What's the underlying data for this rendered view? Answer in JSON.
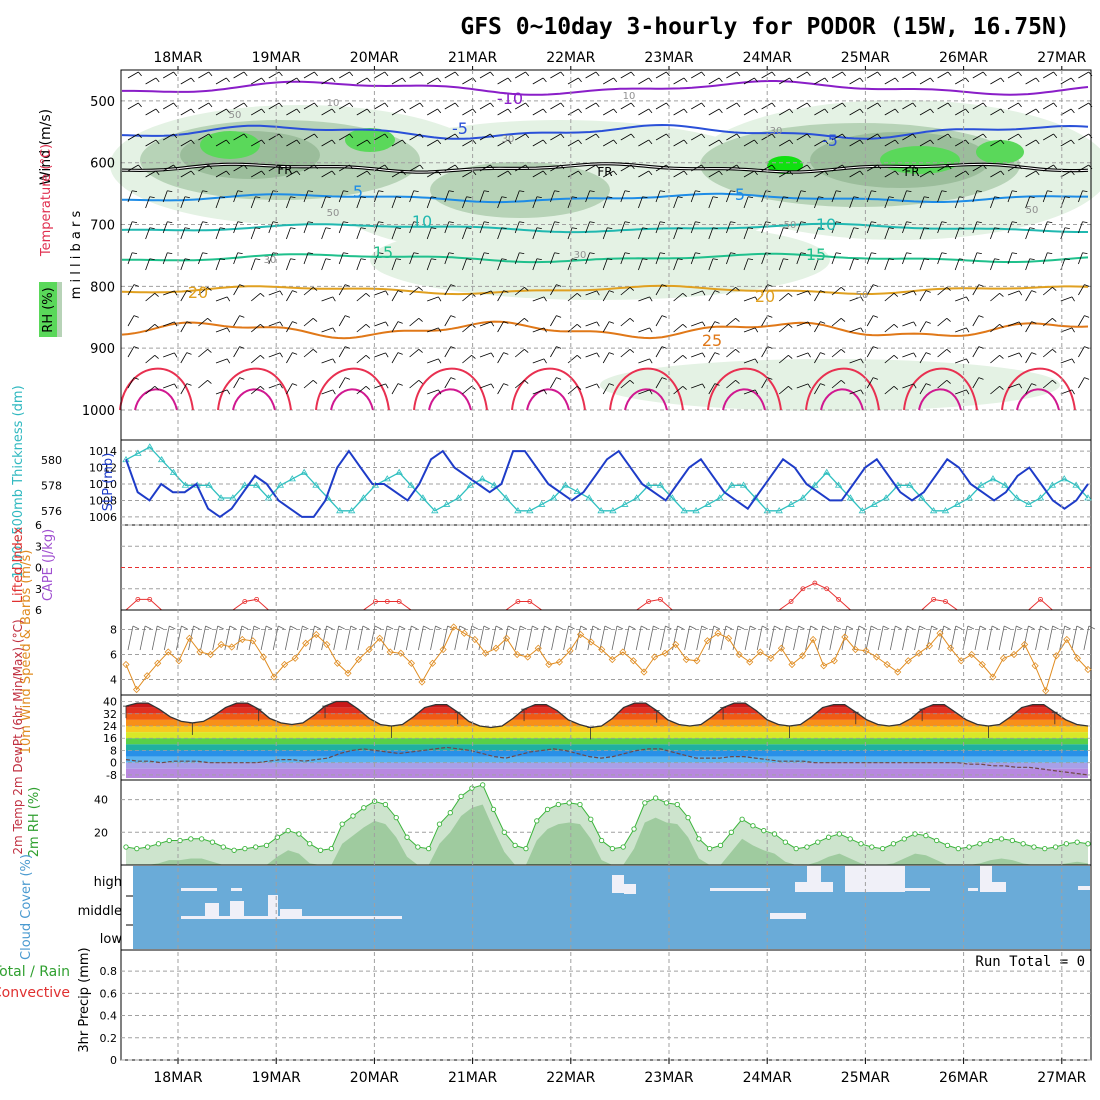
{
  "title": "GFS 0~10day 3-hourly for PODOR (15W, 16.75N)",
  "dates": [
    "18MAR",
    "19MAR",
    "20MAR",
    "21MAR",
    "22MAR",
    "23MAR",
    "24MAR",
    "25MAR",
    "26MAR",
    "27MAR"
  ],
  "colors": {
    "rh_light": "#e4f2e4",
    "rh_mid": "#b7d3b7",
    "rh_dark": "#9bbd9b",
    "rh_bright": "#5ad85a",
    "rh_vivid": "#10e010",
    "temp_m10": "#8a1ec8",
    "temp_m5": "#2a50d8",
    "freeze": "#000000",
    "temp_5": "#1e8ce6",
    "temp_10": "#20b8b0",
    "temp_15": "#20c08c",
    "temp_20": "#e0a020",
    "temp_25": "#e07818",
    "temp_30": "#e83050",
    "temp_35": "#d01890",
    "slp": "#1e3cc8",
    "thickness": "#30c0c0",
    "lifted": "#e83030",
    "wind10": "#e08c20",
    "rh2m": "#3cb43c",
    "rh2m_fill": "#a8d0a8",
    "cloud": "#6aabd8",
    "cloud_white": "#f0f0f8",
    "grid": "#a0a0a0"
  },
  "upper": {
    "ylabel_wind": "Wind (m/s)",
    "ylabel_temp": "Temperature (°C)",
    "ylabel_rh": "RH (%)",
    "ylabel_mb": "m i l l i b a r s",
    "yticks": [
      "500",
      "600",
      "700",
      "800",
      "900",
      "1000"
    ],
    "contour_labels": [
      {
        "text": "-10",
        "group": "m10"
      },
      {
        "text": "-5",
        "group": "m5"
      },
      {
        "text": "-5",
        "group": "m5"
      },
      {
        "text": "FR",
        "group": "fr"
      },
      {
        "text": "FR",
        "group": "fr"
      },
      {
        "text": "FR",
        "group": "fr"
      },
      {
        "text": "5",
        "group": "p5"
      },
      {
        "text": "5",
        "group": "p5"
      },
      {
        "text": "10",
        "group": "p10"
      },
      {
        "text": "10",
        "group": "p10"
      },
      {
        "text": "15",
        "group": "p15"
      },
      {
        "text": "15",
        "group": "p15"
      },
      {
        "text": "20",
        "group": "p20"
      },
      {
        "text": "20",
        "group": "p20"
      },
      {
        "text": "25",
        "group": "p25"
      }
    ],
    "rh_labels": [
      "10",
      "10",
      "50",
      "30",
      "30",
      "50",
      "50",
      "30",
      "30",
      "50",
      "50"
    ]
  },
  "slp_panel": {
    "ylabel_thickness": "1000~500mb Thickness (dm)",
    "ylabel_slp": "SLP (mb)",
    "left_ticks": [
      "580",
      "578",
      "576"
    ],
    "right_ticks": [
      "1014",
      "1012",
      "1010",
      "1008",
      "1006"
    ]
  },
  "li_panel": {
    "ylabel_li": "Lifted Index",
    "ylabel_cape": "CAPE (J/kg)",
    "yticks": [
      "-6",
      "-3",
      "0",
      "3",
      "6"
    ]
  },
  "wind_panel": {
    "ylabel": "10m Wind Speed & Barbs (m/s)",
    "yticks": [
      "8",
      "6",
      "4"
    ]
  },
  "temp_panel": {
    "ylabel": "2m Temp 2m DewPt (6hr Min/Max) (°C)",
    "yticks": [
      "40",
      "32",
      "24",
      "16",
      "8",
      "0",
      "-8"
    ]
  },
  "rh_panel": {
    "ylabel": "2m RH (%)",
    "yticks": [
      "40",
      "20"
    ]
  },
  "cloud_panel": {
    "ylabel": "Cloud Cover (%)",
    "levels": [
      "high",
      "middle",
      "low"
    ]
  },
  "precip_panel": {
    "ylabel_total": "Total / Rain",
    "ylabel_conv": "Convective",
    "ylabel_axis": "3hr Precip (mm)",
    "yticks": [
      "0.8",
      "0.6",
      "0.4",
      "0.2",
      "0"
    ],
    "run_total": "Run Total = 0"
  },
  "chart_data": [
    {
      "type": "line",
      "name": "slp",
      "x_unit": "3-hourly steps from 17 Mar 15Z",
      "ylabel": "SLP (mb)",
      "ylim": [
        1005,
        1015
      ],
      "values": [
        1013,
        1009,
        1008,
        1010,
        1009,
        1009,
        1010,
        1007,
        1006,
        1007,
        1009,
        1011,
        1010,
        1008,
        1007,
        1006,
        1006,
        1008,
        1012,
        1014,
        1012,
        1010,
        1010,
        1009,
        1008,
        1010,
        1013,
        1014,
        1012,
        1011,
        1010,
        1009,
        1010,
        1014,
        1014,
        1012,
        1010,
        1009,
        1008,
        1009,
        1011,
        1013,
        1014,
        1012,
        1010,
        1009,
        1008,
        1010,
        1012,
        1013,
        1011,
        1009,
        1008,
        1007,
        1009,
        1011,
        1013,
        1012,
        1010,
        1009,
        1008,
        1008,
        1010,
        1012,
        1013,
        1011,
        1009,
        1008,
        1009,
        1011,
        1013,
        1012,
        1010,
        1009,
        1008,
        1009,
        1011,
        1012,
        1010,
        1008,
        1007,
        1008,
        1010
      ]
    },
    {
      "type": "line",
      "name": "thickness",
      "ylabel": "1000~500mb Thickness (dm)",
      "ylim": [
        575,
        581
      ],
      "values": [
        580,
        580.5,
        581,
        580,
        579,
        578,
        578,
        578,
        577,
        577,
        578,
        578,
        577,
        578,
        578.5,
        579,
        578,
        577,
        576,
        576,
        577,
        578,
        578.5,
        579,
        578,
        577,
        576,
        576.5,
        577,
        578,
        578.5,
        578,
        577,
        576,
        576,
        576.5,
        577,
        578,
        577.5,
        577,
        576,
        576,
        576.5,
        577,
        578,
        578,
        577,
        576,
        576,
        576.5,
        577,
        578,
        578,
        577,
        576,
        576,
        576.5,
        577,
        578,
        579,
        578,
        577,
        576,
        576.5,
        577,
        578,
        578,
        577,
        576,
        576,
        576.5,
        577,
        578,
        578.5,
        578,
        577,
        576.5,
        577,
        578,
        578.5,
        578,
        577
      ]
    },
    {
      "type": "line",
      "name": "lifted_index",
      "ylabel": "Lifted Index",
      "ylim": [
        6,
        -6
      ],
      "values": [
        6,
        4.5,
        4.5,
        6,
        6,
        6,
        6,
        6,
        6,
        6,
        4.8,
        4.5,
        6,
        6,
        6,
        6,
        6,
        6,
        6,
        6,
        6,
        4.8,
        4.8,
        4.8,
        6,
        6,
        6,
        6,
        6,
        6,
        6,
        6,
        6,
        4.8,
        4.8,
        6,
        6,
        6,
        6,
        6,
        6,
        6,
        6,
        6,
        4.8,
        4.5,
        6,
        6,
        6,
        6,
        6,
        6,
        6,
        6,
        6,
        6,
        4.8,
        3,
        2.2,
        3,
        4.5,
        6,
        6,
        6,
        6,
        6,
        6,
        6,
        4.5,
        4.8,
        6,
        6,
        6,
        6,
        6,
        6,
        6,
        4.5,
        6,
        6,
        6,
        6
      ]
    },
    {
      "type": "line",
      "name": "wind10m_speed",
      "ylabel": "10m Wind Speed (m/s)",
      "ylim": [
        3,
        9
      ],
      "values": [
        5.2,
        3.2,
        4.3,
        5.3,
        6.2,
        5.5,
        7.3,
        6.2,
        6.0,
        6.8,
        6.6,
        7.2,
        7.1,
        5.8,
        4.2,
        5.2,
        5.7,
        6.9,
        7.6,
        6.8,
        5.3,
        4.5,
        5.6,
        6.4,
        7.3,
        6.2,
        6.1,
        5.3,
        3.8,
        5.3,
        6.4,
        8.2,
        7.7,
        7.2,
        6.1,
        6.5,
        7.3,
        6.0,
        5.8,
        6.5,
        5.2,
        5.4,
        6.3,
        7.6,
        7.0,
        6.4,
        5.6,
        6.2,
        5.5,
        4.6,
        5.8,
        6.1,
        6.8,
        5.6,
        5.5,
        7.1,
        7.7,
        7.3,
        6.0,
        5.4,
        6.2,
        5.7,
        6.5,
        5.2,
        5.9,
        7.2,
        5.1,
        5.5,
        7.4,
        6.4,
        6.3,
        5.8,
        5.2,
        4.6,
        5.5,
        6.1,
        6.7,
        7.7,
        6.5,
        5.5,
        6.0,
        5.2,
        4.2,
        5.7,
        6.0,
        6.8,
        5.1,
        3.1,
        5.9,
        7.2,
        5.7,
        4.8
      ]
    },
    {
      "type": "area",
      "name": "temp2m",
      "ylabel": "2m Temp (°C)",
      "ylim": [
        -10,
        42
      ],
      "values": [
        37,
        39,
        39,
        35,
        30,
        27,
        26,
        27,
        31,
        36,
        39,
        39,
        35,
        29,
        26,
        25,
        26,
        31,
        37,
        40,
        40,
        35,
        29,
        25,
        24,
        25,
        30,
        36,
        38,
        38,
        33,
        27,
        24,
        23,
        24,
        29,
        35,
        38,
        38,
        34,
        28,
        25,
        23,
        24,
        29,
        36,
        39,
        39,
        34,
        28,
        25,
        24,
        25,
        30,
        36,
        39,
        39,
        34,
        28,
        25,
        24,
        25,
        30,
        36,
        38,
        38,
        33,
        28,
        25,
        24,
        25,
        29,
        35,
        38,
        38,
        33,
        28,
        25,
        24,
        25,
        30,
        36,
        38,
        38,
        33,
        28,
        25,
        24
      ]
    },
    {
      "type": "line",
      "name": "dewpoint2m",
      "ylabel": "2m DewPt (°C)",
      "ylim": [
        -10,
        42
      ],
      "values": [
        2,
        1,
        1,
        0,
        1,
        1,
        1,
        0,
        0,
        0,
        0,
        0,
        1,
        2,
        2,
        1,
        2,
        3,
        6,
        8,
        9,
        8,
        7,
        6,
        7,
        8,
        9,
        10,
        9,
        8,
        6,
        4,
        3,
        5,
        7,
        8,
        9,
        8,
        6,
        4,
        3,
        4,
        6,
        8,
        9,
        9,
        7,
        5,
        3,
        3,
        3,
        4,
        4,
        3,
        2,
        1,
        1,
        1,
        0,
        0,
        0,
        0,
        0,
        0,
        0,
        0,
        0,
        0,
        0,
        0,
        0,
        -1,
        -1,
        -2,
        -2,
        -3,
        -3,
        -4,
        -5,
        -6,
        -7,
        -8
      ]
    },
    {
      "type": "area",
      "name": "rh2m",
      "ylabel": "2m RH (%)",
      "ylim": [
        0,
        52
      ],
      "values": [
        11,
        10,
        11,
        13,
        15,
        15,
        16,
        16,
        14,
        11,
        9,
        10,
        11,
        12,
        17,
        21,
        19,
        13,
        9,
        10,
        25,
        30,
        35,
        39,
        37,
        29,
        17,
        11,
        10,
        25,
        32,
        42,
        47,
        49,
        34,
        20,
        12,
        10,
        27,
        34,
        37,
        38,
        37,
        28,
        15,
        10,
        11,
        22,
        38,
        41,
        38,
        37,
        29,
        16,
        10,
        12,
        20,
        28,
        24,
        21,
        19,
        14,
        10,
        11,
        14,
        17,
        19,
        16,
        13,
        11,
        10,
        13,
        16,
        19,
        18,
        15,
        12,
        10,
        11,
        13,
        15,
        16,
        15,
        13,
        11,
        10,
        11,
        13,
        14,
        13
      ]
    },
    {
      "type": "bar",
      "name": "cloud_cover",
      "note": "white segments above the blue field by level",
      "levels": [
        "high",
        "middle",
        "low"
      ]
    },
    {
      "type": "bar",
      "name": "precip3hr",
      "ylabel": "3hr Precip (mm)",
      "ylim": [
        0,
        1
      ],
      "values": []
    }
  ]
}
